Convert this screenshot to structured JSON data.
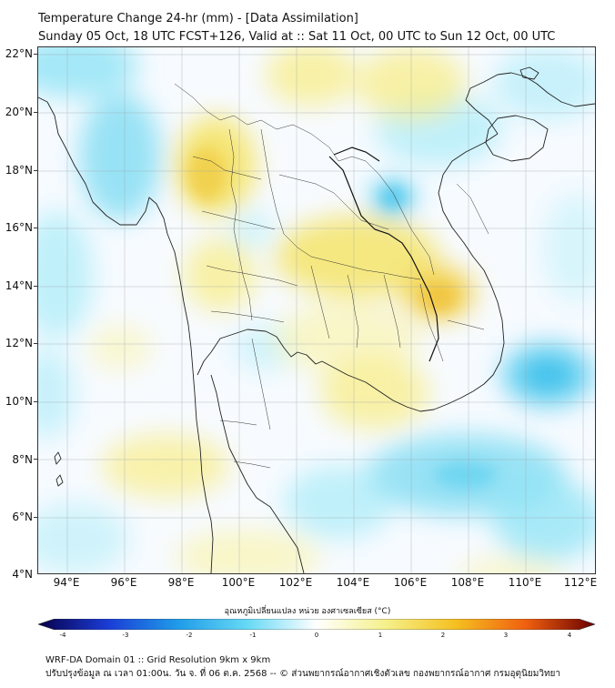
{
  "header": {
    "title": "Temperature Change 24-hr (mm) - [Data Assimilation]",
    "subtitle": "Sunday 05 Oct, 18 UTC FCST+126, Valid at :: Sat 11 Oct, 00 UTC to Sun 12 Oct, 00 UTC"
  },
  "map": {
    "lat_labels": [
      "22°N",
      "20°N",
      "18°N",
      "16°N",
      "14°N",
      "12°N",
      "10°N",
      "8°N",
      "6°N",
      "4°N"
    ],
    "lon_labels": [
      "94°E",
      "96°E",
      "98°E",
      "100°E",
      "102°E",
      "104°E",
      "106°E",
      "108°E",
      "110°E",
      "112°E"
    ],
    "lat_range": [
      4,
      22.2
    ],
    "lon_range": [
      93.0,
      112.5
    ]
  },
  "colorbar": {
    "title": "อุณหภูมิเปลี่ยนแปลง หน่วย องศาเซลเซียส (°C)",
    "tick_labels": [
      "-4",
      "-3",
      "-2",
      "-1",
      "0",
      "1",
      "2",
      "3",
      "4"
    ],
    "range": [
      -4,
      4
    ],
    "colors": {
      "c_neg4": "#08004a",
      "c_neg3": "#1a3cd6",
      "c_neg2": "#1f9be8",
      "c_neg1": "#66d9f5",
      "c_0": "#ffffff",
      "c_1": "#f5f08a",
      "c_2": "#f5c020",
      "c_3": "#f06010",
      "c_4": "#6a0000"
    }
  },
  "footer": {
    "line1": "WRF-DA Domain 01 :: Grid Resolution 9km x 9km",
    "line2": "ปรับปรุงข้อมูล ณ เวลา 01:00น. วัน จ. ที่ 06 ต.ค. 2568 -- © ส่วนพยากรณ์อากาศเชิงตัวเลข กองพยากรณ์อากาศ กรมอุตุนิยมวิทยา"
  }
}
